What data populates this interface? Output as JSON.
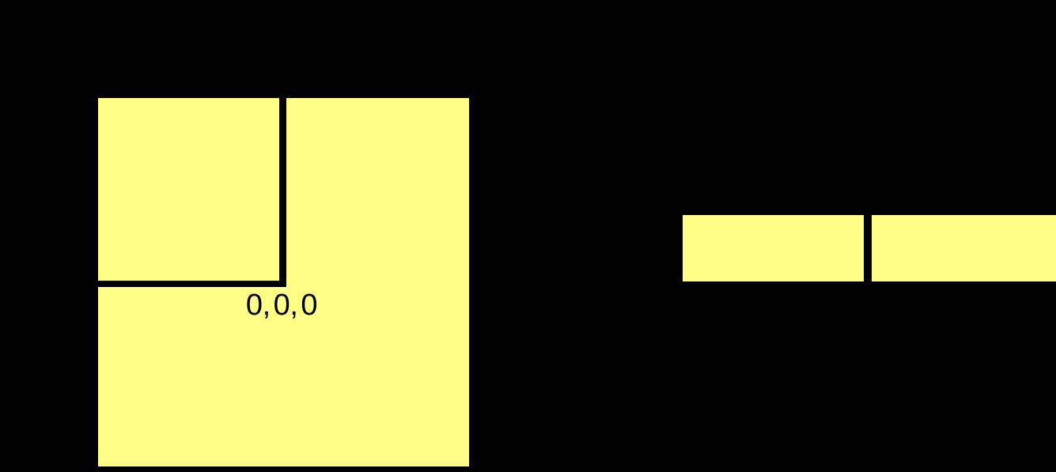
{
  "colors": {
    "background": "#000000",
    "rect_fill": "#ffff88",
    "rect_stroke": "#000000",
    "label_text": "#000000"
  },
  "left_figure": {
    "origin_label": "0, 0, 0"
  }
}
